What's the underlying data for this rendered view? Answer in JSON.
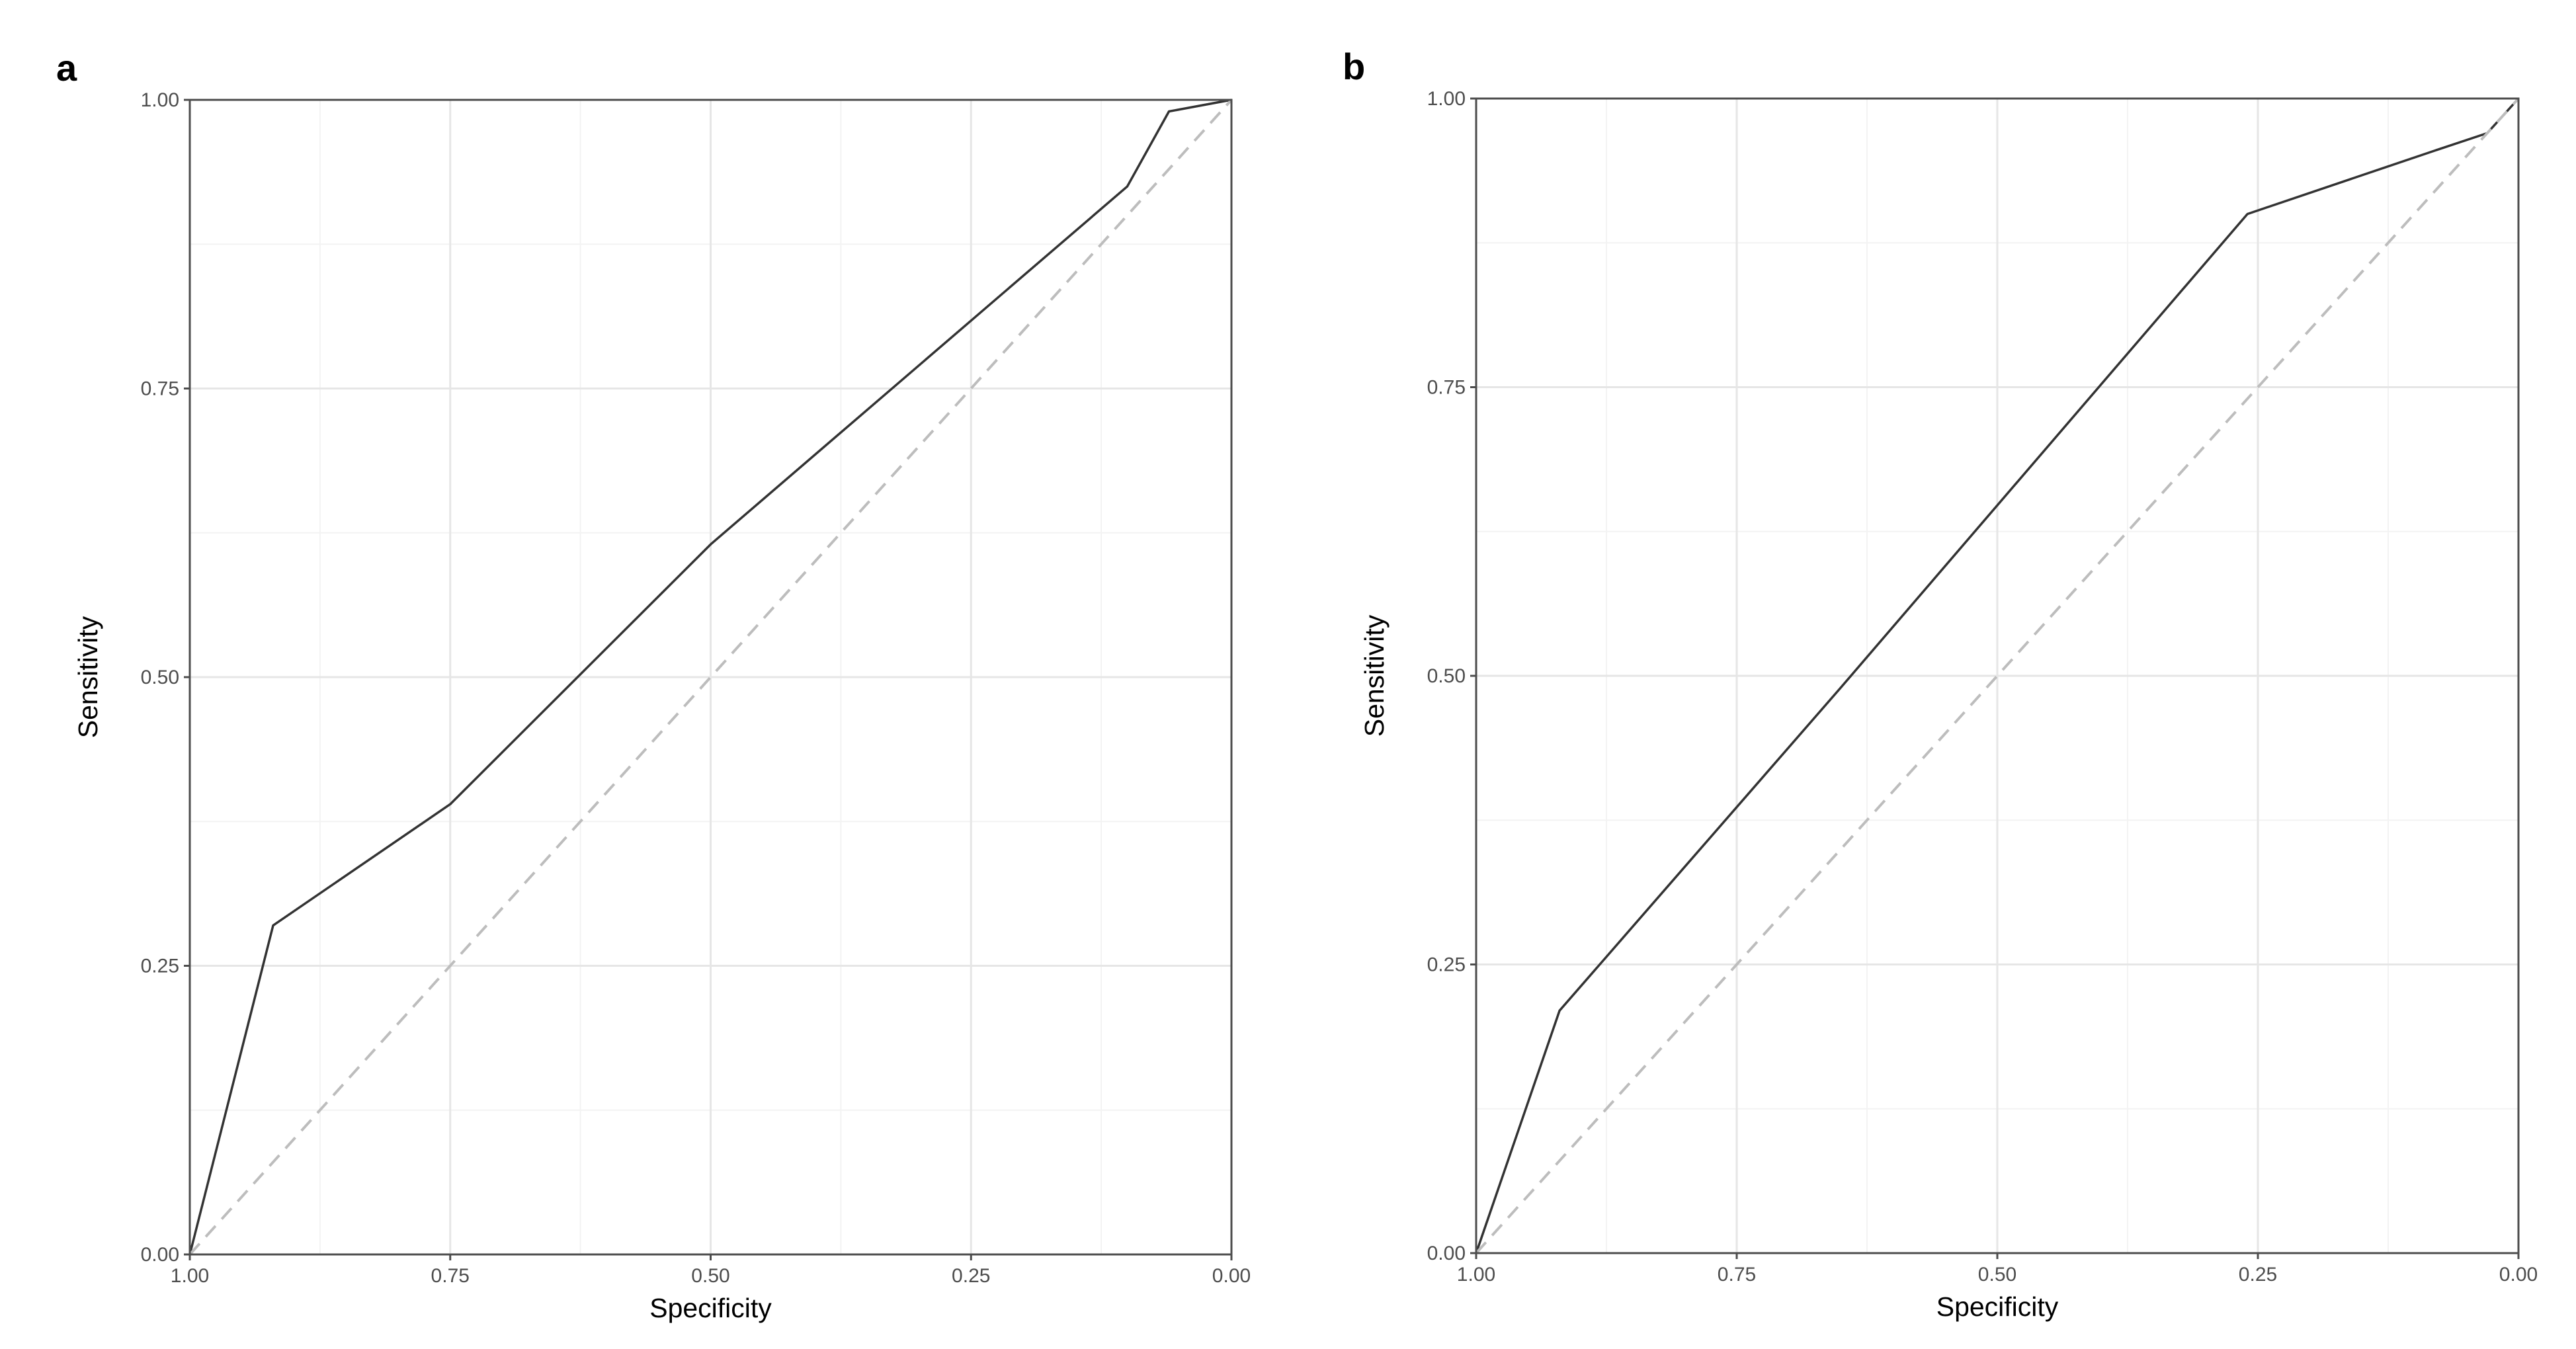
{
  "chart_data": [
    {
      "panel_label": "a",
      "type": "line",
      "title": "",
      "xlabel": "Specificity",
      "ylabel": "Sensitivity",
      "x_reversed": true,
      "xlim": [
        1.0,
        0.0
      ],
      "ylim": [
        0.0,
        1.0
      ],
      "xticks": [
        "1.00",
        "0.75",
        "0.50",
        "0.25",
        "0.00"
      ],
      "yticks": [
        "0.00",
        "0.25",
        "0.50",
        "0.75",
        "1.00"
      ],
      "grid": true,
      "legend": "none",
      "series": [
        {
          "role": "roc",
          "color": "#333333",
          "x": [
            1.0,
            0.92,
            0.75,
            0.5,
            0.1,
            0.06,
            0.0
          ],
          "y": [
            0.0,
            0.285,
            0.39,
            0.615,
            0.925,
            0.99,
            1.0
          ]
        },
        {
          "role": "chance",
          "color": "#bdbdbd",
          "dashed": true,
          "x": [
            1.0,
            0.0
          ],
          "y": [
            0.0,
            1.0
          ]
        }
      ]
    },
    {
      "panel_label": "b",
      "type": "line",
      "title": "",
      "xlabel": "Specificity",
      "ylabel": "Sensitivity",
      "x_reversed": true,
      "xlim": [
        1.0,
        0.0
      ],
      "ylim": [
        0.0,
        1.0
      ],
      "xticks": [
        "1.00",
        "0.75",
        "0.50",
        "0.25",
        "0.00"
      ],
      "yticks": [
        "0.00",
        "0.25",
        "0.50",
        "0.75",
        "1.00"
      ],
      "grid": true,
      "legend": "none",
      "series": [
        {
          "role": "roc",
          "color": "#333333",
          "x": [
            1.0,
            0.92,
            0.65,
            0.26,
            0.08,
            0.03,
            0.0
          ],
          "y": [
            0.0,
            0.21,
            0.49,
            0.9,
            0.955,
            0.97,
            1.0
          ]
        },
        {
          "role": "chance",
          "color": "#bdbdbd",
          "dashed": true,
          "x": [
            1.0,
            0.0
          ],
          "y": [
            0.0,
            1.0
          ]
        }
      ]
    }
  ]
}
